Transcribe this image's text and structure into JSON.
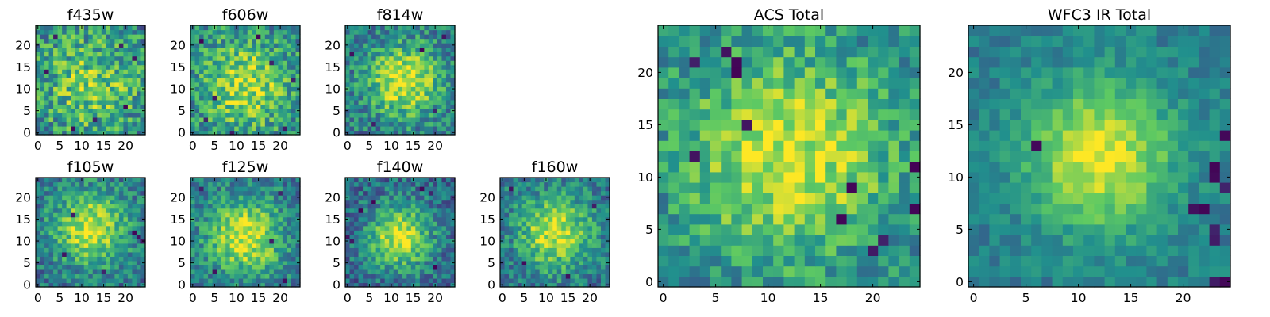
{
  "chart_data": [
    {
      "type": "heatmap",
      "title": "f435w",
      "xticks": [
        "0",
        "5",
        "10",
        "15",
        "20"
      ],
      "yticks": [
        "0",
        "5",
        "10",
        "15",
        "20"
      ],
      "xlim": [
        -0.5,
        24.5
      ],
      "ylim": [
        -0.5,
        24.5
      ],
      "grid_size": 25,
      "peak": [
        12,
        11
      ],
      "peak_width": 9,
      "peak_strength": 0.35,
      "noise": 0.55,
      "base": 0.42,
      "seed": 11,
      "dark_pixels": [
        [
          4,
          22
        ],
        [
          13,
          3
        ],
        [
          20,
          6
        ],
        [
          19,
          20
        ],
        [
          2,
          14
        ],
        [
          8,
          1
        ],
        [
          22,
          17
        ]
      ]
    },
    {
      "type": "heatmap",
      "title": "f606w",
      "xticks": [
        "0",
        "5",
        "10",
        "15",
        "20"
      ],
      "yticks": [
        "0",
        "5",
        "10",
        "15",
        "20"
      ],
      "xlim": [
        -0.5,
        24.5
      ],
      "ylim": [
        -0.5,
        24.5
      ],
      "grid_size": 25,
      "peak": [
        12,
        11
      ],
      "peak_width": 8,
      "peak_strength": 0.45,
      "noise": 0.5,
      "base": 0.42,
      "seed": 23,
      "dark_pixels": [
        [
          2,
          21
        ],
        [
          5,
          8
        ],
        [
          18,
          16
        ],
        [
          21,
          1
        ],
        [
          9,
          0
        ],
        [
          23,
          12
        ],
        [
          15,
          22
        ],
        [
          3,
          3
        ]
      ]
    },
    {
      "type": "heatmap",
      "title": "f814w",
      "xticks": [
        "0",
        "5",
        "10",
        "15",
        "20"
      ],
      "yticks": [
        "0",
        "5",
        "10",
        "15",
        "20"
      ],
      "xlim": [
        -0.5,
        24.5
      ],
      "ylim": [
        -0.5,
        24.5
      ],
      "grid_size": 25,
      "peak": [
        13,
        12
      ],
      "peak_width": 6,
      "peak_strength": 0.55,
      "noise": 0.45,
      "base": 0.4,
      "seed": 37,
      "dark_pixels": [
        [
          1,
          18
        ],
        [
          22,
          22
        ],
        [
          20,
          5
        ],
        [
          6,
          2
        ],
        [
          17,
          19
        ]
      ]
    },
    {
      "type": "heatmap",
      "title": "f105w",
      "xticks": [
        "0",
        "5",
        "10",
        "15",
        "20"
      ],
      "yticks": [
        "0",
        "5",
        "10",
        "15",
        "20"
      ],
      "xlim": [
        -0.5,
        24.5
      ],
      "ylim": [
        -0.5,
        24.5
      ],
      "grid_size": 25,
      "peak": [
        12,
        13
      ],
      "peak_width": 6,
      "peak_strength": 0.55,
      "noise": 0.4,
      "base": 0.38,
      "seed": 41,
      "dark_pixels": [
        [
          23,
          11
        ],
        [
          22,
          12
        ],
        [
          24,
          10
        ],
        [
          8,
          16
        ],
        [
          6,
          7
        ],
        [
          15,
          3
        ]
      ]
    },
    {
      "type": "heatmap",
      "title": "f125w",
      "xticks": [
        "0",
        "5",
        "10",
        "15",
        "20"
      ],
      "yticks": [
        "0",
        "5",
        "10",
        "15",
        "20"
      ],
      "xlim": [
        -0.5,
        24.5
      ],
      "ylim": [
        -0.5,
        24.5
      ],
      "grid_size": 25,
      "peak": [
        12,
        11
      ],
      "peak_width": 6,
      "peak_strength": 0.55,
      "noise": 0.4,
      "base": 0.4,
      "seed": 53,
      "dark_pixels": [
        [
          2,
          22
        ],
        [
          20,
          21
        ],
        [
          21,
          1
        ],
        [
          5,
          3
        ],
        [
          18,
          10
        ]
      ]
    },
    {
      "type": "heatmap",
      "title": "f140w",
      "xticks": [
        "0",
        "5",
        "10",
        "15",
        "20"
      ],
      "yticks": [
        "0",
        "5",
        "10",
        "15",
        "20"
      ],
      "xlim": [
        -0.5,
        24.5
      ],
      "ylim": [
        -0.5,
        24.5
      ],
      "grid_size": 25,
      "peak": [
        12,
        11
      ],
      "peak_width": 5,
      "peak_strength": 0.6,
      "noise": 0.4,
      "base": 0.35,
      "seed": 67,
      "dark_pixels": [
        [
          17,
          22
        ],
        [
          19,
          21
        ],
        [
          0,
          11
        ],
        [
          1,
          10
        ],
        [
          20,
          4
        ],
        [
          6,
          19
        ],
        [
          3,
          17
        ]
      ]
    },
    {
      "type": "heatmap",
      "title": "f160w",
      "xticks": [
        "0",
        "5",
        "10",
        "15",
        "20"
      ],
      "yticks": [
        "0",
        "5",
        "10",
        "15",
        "20"
      ],
      "xlim": [
        -0.5,
        24.5
      ],
      "ylim": [
        -0.5,
        24.5
      ],
      "grid_size": 25,
      "peak": [
        12,
        12
      ],
      "peak_width": 6,
      "peak_strength": 0.55,
      "noise": 0.4,
      "base": 0.38,
      "seed": 79,
      "dark_pixels": [
        [
          2,
          22
        ],
        [
          21,
          18
        ],
        [
          5,
          5
        ],
        [
          15,
          2
        ]
      ]
    },
    {
      "type": "heatmap",
      "title": "ACS Total",
      "xticks": [
        "0",
        "5",
        "10",
        "15",
        "20"
      ],
      "yticks": [
        "0",
        "5",
        "10",
        "15",
        "20"
      ],
      "xlim": [
        -0.5,
        24.5
      ],
      "ylim": [
        -0.5,
        24.5
      ],
      "grid_size": 25,
      "peak": [
        12,
        12
      ],
      "peak_width": 7,
      "peak_strength": 0.5,
      "noise": 0.38,
      "base": 0.45,
      "seed": 91,
      "dark_pixels": [
        [
          3,
          21
        ],
        [
          6,
          22
        ],
        [
          7,
          20
        ],
        [
          7,
          21
        ],
        [
          8,
          15
        ],
        [
          3,
          12
        ],
        [
          17,
          6
        ],
        [
          24,
          11
        ],
        [
          24,
          7
        ],
        [
          21,
          4
        ],
        [
          20,
          3
        ],
        [
          18,
          9
        ]
      ]
    },
    {
      "type": "heatmap",
      "title": "WFC3 IR Total",
      "xticks": [
        "0",
        "5",
        "10",
        "15",
        "20"
      ],
      "yticks": [
        "0",
        "5",
        "10",
        "15",
        "20"
      ],
      "xlim": [
        -0.5,
        24.5
      ],
      "ylim": [
        -0.5,
        24.5
      ],
      "grid_size": 25,
      "peak": [
        12,
        12
      ],
      "peak_width": 5,
      "peak_strength": 0.55,
      "noise": 0.22,
      "base": 0.42,
      "seed": 103,
      "dark_pixels": [
        [
          23,
          11
        ],
        [
          23,
          10
        ],
        [
          24,
          9
        ],
        [
          23,
          5
        ],
        [
          23,
          4
        ],
        [
          24,
          0
        ],
        [
          23,
          0
        ],
        [
          21,
          7
        ],
        [
          22,
          7
        ],
        [
          6,
          13
        ],
        [
          24,
          14
        ]
      ]
    }
  ],
  "colormap": [
    "#440154",
    "#3b528b",
    "#21908d",
    "#5dc963",
    "#fde725"
  ]
}
